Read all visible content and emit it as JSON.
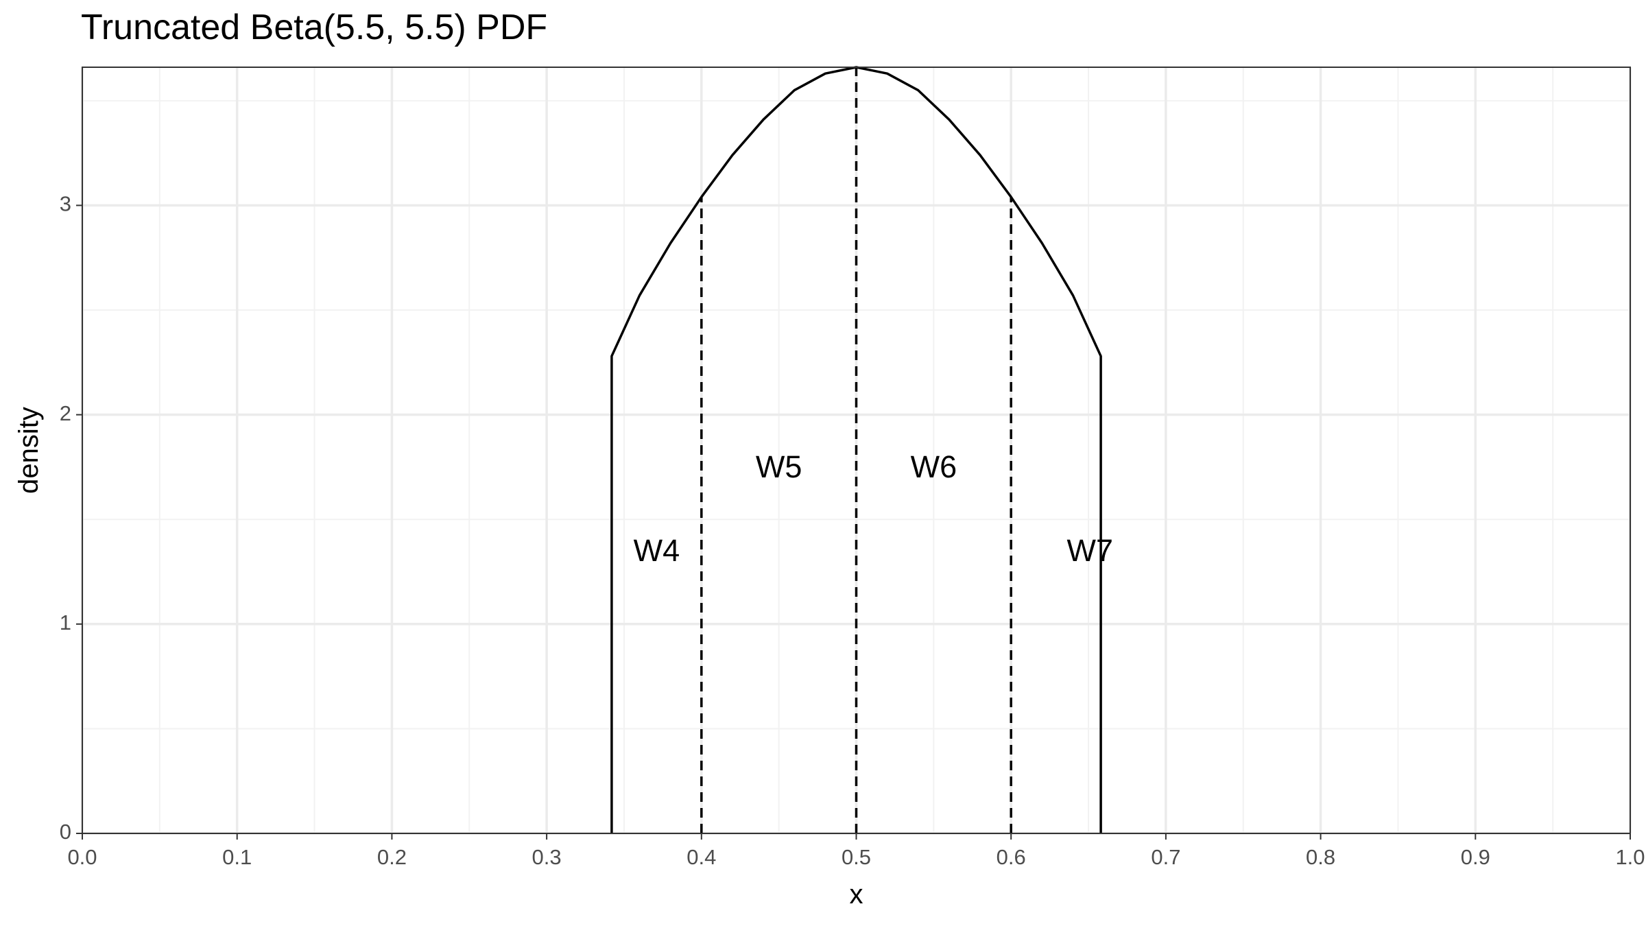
{
  "chart_data": {
    "type": "line",
    "title": "Truncated Beta(5.5, 5.5) PDF",
    "xlabel": "x",
    "ylabel": "density",
    "xlim": [
      0,
      1
    ],
    "ylim": [
      0,
      3.66
    ],
    "x_ticks": [
      "0.0",
      "0.1",
      "0.2",
      "0.3",
      "0.4",
      "0.5",
      "0.6",
      "0.7",
      "0.8",
      "0.9",
      "1.0"
    ],
    "y_ticks": [
      "0",
      "1",
      "2",
      "3"
    ],
    "grid": true,
    "distribution": {
      "alpha": 5.5,
      "beta": 5.5,
      "lower": 0.342,
      "upper": 0.658
    },
    "series": [
      {
        "color": "#000000",
        "x": [
          0.342,
          0.342,
          0.36,
          0.38,
          0.4,
          0.42,
          0.44,
          0.46,
          0.48,
          0.5,
          0.52,
          0.54,
          0.56,
          0.58,
          0.6,
          0.62,
          0.64,
          0.658,
          0.658
        ],
        "y": [
          0,
          2.28,
          2.57,
          2.82,
          3.04,
          3.24,
          3.41,
          3.55,
          3.63,
          3.66,
          3.63,
          3.55,
          3.41,
          3.24,
          3.04,
          2.82,
          2.57,
          2.28,
          0
        ]
      }
    ],
    "dividers": [
      {
        "x": 0.4,
        "y": 3.04
      },
      {
        "x": 0.5,
        "y": 3.66
      },
      {
        "x": 0.6,
        "y": 3.04
      }
    ],
    "annotations": [
      {
        "text": "W4",
        "x": 0.371,
        "y": 1.34
      },
      {
        "text": "W5",
        "x": 0.45,
        "y": 1.74
      },
      {
        "text": "W6",
        "x": 0.55,
        "y": 1.74
      },
      {
        "text": "W7",
        "x": 0.651,
        "y": 1.34
      }
    ]
  }
}
